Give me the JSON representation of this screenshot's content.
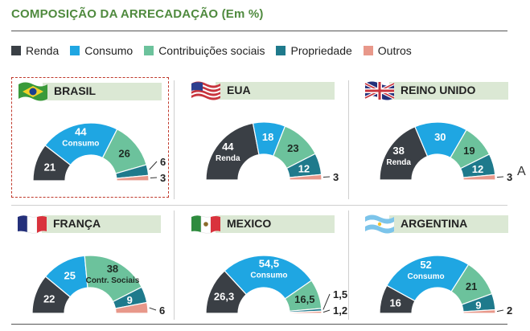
{
  "title": "COMPOSIÇÃO DA ARRECADAÇÃO (Em %)",
  "legend": [
    {
      "label": "Renda",
      "color": "#3a3f45"
    },
    {
      "label": "Consumo",
      "color": "#1fa6e2"
    },
    {
      "label": "Contribuições sociais",
      "color": "#6cc29c"
    },
    {
      "label": "Propriedade",
      "color": "#1f7a8c"
    },
    {
      "label": "Outros",
      "color": "#e8988a"
    }
  ],
  "chart_data": [
    {
      "type": "pie",
      "title": "BRASIL",
      "flag": "flag-brazil",
      "categories": [
        "Renda",
        "Consumo",
        "Contribuições sociais",
        "Propriedade",
        "Outros"
      ],
      "values": [
        21,
        44,
        26,
        6,
        3
      ],
      "labels": [
        "21",
        "44",
        "26",
        "6",
        "3"
      ],
      "sublabels": [
        "",
        "Consumo",
        "",
        "",
        ""
      ],
      "highlighted": true
    },
    {
      "type": "pie",
      "title": "EUA",
      "flag": "flag-usa",
      "categories": [
        "Renda",
        "Consumo",
        "Contribuições sociais",
        "Propriedade",
        "Outros"
      ],
      "values": [
        44,
        18,
        23,
        12,
        3
      ],
      "labels": [
        "44",
        "18",
        "23",
        "12",
        "3"
      ],
      "sublabels": [
        "Renda",
        "",
        "",
        "",
        ""
      ]
    },
    {
      "type": "pie",
      "title": "REINO UNIDO",
      "flag": "flag-uk",
      "categories": [
        "Renda",
        "Consumo",
        "Contribuições sociais",
        "Propriedade",
        "Outros"
      ],
      "values": [
        38,
        30,
        19,
        12,
        3
      ],
      "labels": [
        "38",
        "30",
        "19",
        "12",
        "3"
      ],
      "sublabels": [
        "Renda",
        "",
        "",
        "",
        ""
      ]
    },
    {
      "type": "pie",
      "title": "FRANÇA",
      "flag": "flag-france",
      "categories": [
        "Renda",
        "Consumo",
        "Contribuições sociais",
        "Propriedade",
        "Outros"
      ],
      "values": [
        22,
        25,
        38,
        9,
        6
      ],
      "labels": [
        "22",
        "25",
        "38",
        "9",
        "6"
      ],
      "sublabels": [
        "",
        "",
        "Contr. Sociais",
        "",
        ""
      ]
    },
    {
      "type": "pie",
      "title": "MEXICO",
      "flag": "flag-mexico",
      "categories": [
        "Renda",
        "Consumo",
        "Contribuições sociais",
        "Propriedade",
        "Outros"
      ],
      "values": [
        26.3,
        54.5,
        16.5,
        1.5,
        1.2
      ],
      "labels": [
        "26,3",
        "54,5",
        "16,5",
        "1,5",
        "1,2"
      ],
      "sublabels": [
        "",
        "Consumo",
        "",
        "",
        ""
      ]
    },
    {
      "type": "pie",
      "title": "ARGENTINA",
      "flag": "flag-argentina",
      "categories": [
        "Renda",
        "Consumo",
        "Contribuições sociais",
        "Propriedade",
        "Outros"
      ],
      "values": [
        16,
        52,
        21,
        9,
        2
      ],
      "labels": [
        "16",
        "52",
        "21",
        "9",
        "2"
      ],
      "sublabels": [
        "",
        "Consumo",
        "",
        "",
        ""
      ]
    }
  ],
  "stray_text": "A"
}
